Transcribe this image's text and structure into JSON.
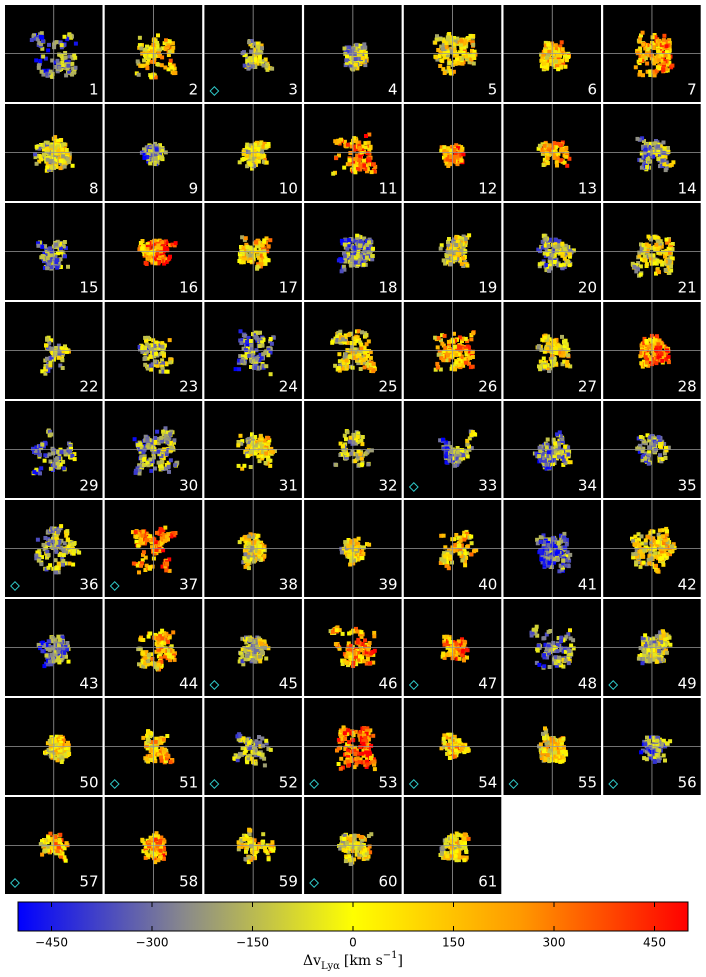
{
  "panels": [
    {
      "label": "1",
      "flag": false
    },
    {
      "label": "2",
      "flag": false
    },
    {
      "label": "3",
      "flag": true
    },
    {
      "label": "4",
      "flag": false
    },
    {
      "label": "5",
      "flag": false
    },
    {
      "label": "6",
      "flag": false
    },
    {
      "label": "7",
      "flag": false
    },
    {
      "label": "8",
      "flag": false
    },
    {
      "label": "9",
      "flag": false
    },
    {
      "label": "10",
      "flag": false
    },
    {
      "label": "11",
      "flag": false
    },
    {
      "label": "12",
      "flag": false
    },
    {
      "label": "13",
      "flag": false
    },
    {
      "label": "14",
      "flag": false
    },
    {
      "label": "15",
      "flag": false
    },
    {
      "label": "16",
      "flag": false
    },
    {
      "label": "17",
      "flag": false
    },
    {
      "label": "18",
      "flag": false
    },
    {
      "label": "19",
      "flag": false
    },
    {
      "label": "20",
      "flag": false
    },
    {
      "label": "21",
      "flag": false
    },
    {
      "label": "22",
      "flag": false
    },
    {
      "label": "23",
      "flag": false
    },
    {
      "label": "24",
      "flag": false
    },
    {
      "label": "25",
      "flag": false
    },
    {
      "label": "26",
      "flag": false
    },
    {
      "label": "27",
      "flag": false
    },
    {
      "label": "28",
      "flag": false
    },
    {
      "label": "29",
      "flag": false
    },
    {
      "label": "30",
      "flag": false
    },
    {
      "label": "31",
      "flag": false
    },
    {
      "label": "32",
      "flag": false
    },
    {
      "label": "33",
      "flag": true
    },
    {
      "label": "34",
      "flag": false
    },
    {
      "label": "35",
      "flag": false
    },
    {
      "label": "36",
      "flag": true
    },
    {
      "label": "37",
      "flag": true
    },
    {
      "label": "38",
      "flag": false
    },
    {
      "label": "39",
      "flag": false
    },
    {
      "label": "40",
      "flag": false
    },
    {
      "label": "41",
      "flag": false
    },
    {
      "label": "42",
      "flag": false
    },
    {
      "label": "43",
      "flag": false
    },
    {
      "label": "44",
      "flag": false
    },
    {
      "label": "45",
      "flag": true
    },
    {
      "label": "46",
      "flag": false
    },
    {
      "label": "47",
      "flag": true
    },
    {
      "label": "48",
      "flag": false
    },
    {
      "label": "49",
      "flag": true
    },
    {
      "label": "50",
      "flag": false
    },
    {
      "label": "51",
      "flag": true
    },
    {
      "label": "52",
      "flag": true
    },
    {
      "label": "53",
      "flag": true
    },
    {
      "label": "54",
      "flag": true
    },
    {
      "label": "55",
      "flag": true
    },
    {
      "label": "56",
      "flag": true
    },
    {
      "label": "57",
      "flag": true
    },
    {
      "label": "58",
      "flag": false
    },
    {
      "label": "59",
      "flag": false
    },
    {
      "label": "60",
      "flag": true
    },
    {
      "label": "61",
      "flag": false
    }
  ],
  "colorbar": {
    "clim": [
      -500,
      500
    ],
    "ticks": [
      {
        "value": -450,
        "label": "−450"
      },
      {
        "value": -300,
        "label": "−300"
      },
      {
        "value": -150,
        "label": "−150"
      },
      0,
      150,
      300,
      450
    ],
    "colors": [
      "#0000ff",
      "#8a8a8a",
      "#ffff00",
      "#ff9900",
      "#ff0000"
    ],
    "label_parts": [
      "Δv",
      "Lyα",
      "[km s",
      "−1",
      "]"
    ]
  }
}
